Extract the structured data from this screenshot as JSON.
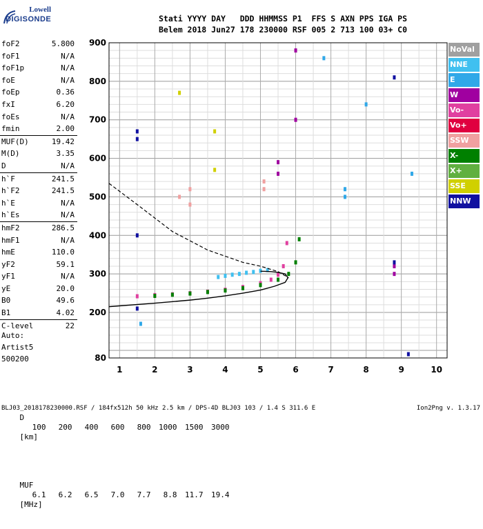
{
  "logo": {
    "line1": "Lowell",
    "line2": "DIGISONDE"
  },
  "header": {
    "labels": "Stati YYYY DAY   DDD HHMMSS P1  FFS S AXN PPS IGA PS",
    "values": "Belem 2018 Jun27 178 230000 RSF 005 2 713 100 03+ C0"
  },
  "params": [
    {
      "label": "foF2",
      "value": "5.800"
    },
    {
      "label": "foF1",
      "value": "N/A"
    },
    {
      "label": "foF1p",
      "value": "N/A"
    },
    {
      "label": "foE",
      "value": "N/A"
    },
    {
      "label": "foEp",
      "value": "0.36"
    },
    {
      "label": "fxI",
      "value": "6.20"
    },
    {
      "label": "foEs",
      "value": "N/A"
    },
    {
      "label": "fmin",
      "value": "2.00"
    },
    {
      "label": "MUF(D)",
      "value": "19.42"
    },
    {
      "label": "M(D)",
      "value": "3.35"
    },
    {
      "label": "D",
      "value": "N/A"
    },
    {
      "label": "h`F",
      "value": "241.5"
    },
    {
      "label": "h`F2",
      "value": "241.5"
    },
    {
      "label": "h`E",
      "value": "N/A"
    },
    {
      "label": "h`Es",
      "value": "N/A"
    },
    {
      "label": "hmF2",
      "value": "286.5"
    },
    {
      "label": "hmF1",
      "value": "N/A"
    },
    {
      "label": "hmE",
      "value": "110.0"
    },
    {
      "label": "yF2",
      "value": "59.1"
    },
    {
      "label": "yF1",
      "value": "N/A"
    },
    {
      "label": "yE",
      "value": "20.0"
    },
    {
      "label": "B0",
      "value": "49.6"
    },
    {
      "label": "B1",
      "value": "4.02"
    },
    {
      "label": "C-level",
      "value": "22"
    }
  ],
  "autoscaling": {
    "line1": "Auto:",
    "line2": "Artist5",
    "line3": "500200"
  },
  "legend": [
    {
      "label": "NoVal",
      "color": "#a0a0a0"
    },
    {
      "label": "NNE",
      "color": "#40c0f0"
    },
    {
      "label": "E",
      "color": "#30a8e8"
    },
    {
      "label": "W",
      "color": "#a000a0"
    },
    {
      "label": "Vo-",
      "color": "#e040a0"
    },
    {
      "label": "Vo+",
      "color": "#e00040"
    },
    {
      "label": "SSW",
      "color": "#f0a0a0"
    },
    {
      "label": "X-",
      "color": "#008000"
    },
    {
      "label": "X+",
      "color": "#60b040"
    },
    {
      "label": "SSE",
      "color": "#d0d000"
    },
    {
      "label": "NNW",
      "color": "#1010a0"
    }
  ],
  "dmuf": {
    "dlabel": "D",
    "distances": [
      "100",
      "200",
      "400",
      "600",
      "800",
      "1000",
      "1500",
      "3000"
    ],
    "dunit": "[km]",
    "muflabel": "MUF",
    "mufs": [
      "6.1",
      "6.2",
      "6.5",
      "7.0",
      "7.7",
      "8.8",
      "11.7",
      "19.4"
    ],
    "mufunit": "[MHz]"
  },
  "footer": "BLJ03_2018178230000.RSF / 184fx512h 50 kHz 2.5 km / DPS-4D BLJ03 103 / 1.4 S 311.6 E",
  "version": "Ion2Png v. 1.3.17",
  "chart_data": {
    "type": "scatter",
    "xlim": [
      0.7,
      10.3
    ],
    "ylim": [
      80,
      900
    ],
    "xticks": [
      "1",
      "2",
      "3",
      "4",
      "5",
      "6",
      "7",
      "8",
      "9",
      "10"
    ],
    "yticks": [
      "80",
      "200",
      "300",
      "400",
      "500",
      "600",
      "700",
      "800",
      "900"
    ],
    "grid": true,
    "legend_position": "right",
    "series": [
      {
        "name": "Vo-",
        "color": "#e040a0",
        "x": [
          1.5,
          2.0,
          2.5,
          3.0,
          3.5,
          4.0,
          4.5,
          5.0,
          5.3,
          5.5,
          5.65,
          5.75
        ],
        "y": [
          242,
          245,
          247,
          250,
          254,
          259,
          266,
          276,
          285,
          298,
          320,
          380
        ]
      },
      {
        "name": "X-",
        "color": "#008000",
        "x": [
          2.0,
          2.5,
          3.0,
          3.5,
          4.0,
          4.5,
          5.0,
          5.5,
          5.8,
          6.0,
          6.1
        ],
        "y": [
          243,
          246,
          249,
          253,
          257,
          263,
          271,
          285,
          300,
          330,
          390
        ]
      },
      {
        "name": "NNE",
        "color": "#40c0f0",
        "x": [
          3.8,
          4.0,
          4.2,
          4.4,
          4.6,
          4.8,
          5.0,
          5.2
        ],
        "y": [
          292,
          295,
          298,
          300,
          303,
          305,
          308,
          310
        ]
      },
      {
        "name": "W",
        "color": "#a000a0",
        "x": [
          5.5,
          5.5,
          6.0,
          6.0,
          8.8,
          8.8
        ],
        "y": [
          560,
          590,
          700,
          880,
          300,
          320
        ]
      },
      {
        "name": "NNW",
        "color": "#1010a0",
        "x": [
          1.5,
          1.5,
          1.5,
          1.5,
          8.8,
          8.8,
          9.2
        ],
        "y": [
          650,
          670,
          400,
          210,
          810,
          330,
          90
        ]
      },
      {
        "name": "SSW",
        "color": "#f0a0a0",
        "x": [
          3.0,
          3.0,
          2.7,
          5.1,
          5.1
        ],
        "y": [
          480,
          520,
          500,
          520,
          540
        ]
      },
      {
        "name": "SSE",
        "color": "#d0d000",
        "x": [
          2.7,
          3.7,
          3.7
        ],
        "y": [
          770,
          670,
          570
        ]
      },
      {
        "name": "E",
        "color": "#30a8e8",
        "x": [
          1.6,
          6.8,
          7.4,
          7.4,
          8.0,
          9.3
        ],
        "y": [
          170,
          860,
          500,
          520,
          740,
          560
        ]
      }
    ],
    "profile_x": [
      0.7,
      2.0,
      3.0,
      3.5,
      4.0,
      4.5,
      5.0,
      5.4,
      5.7,
      5.78
    ],
    "profile_y": [
      215,
      224,
      232,
      237,
      243,
      250,
      258,
      268,
      278,
      290
    ],
    "profile_upper_x": [
      5.78,
      5.7,
      5.5,
      5.3,
      5.0
    ],
    "profile_upper_y": [
      290,
      300,
      304,
      306,
      307
    ],
    "muf_curve_x": [
      0.7,
      1.5,
      2.5,
      3.5,
      4.5,
      5.0,
      5.5,
      5.8
    ],
    "muf_curve_y": [
      535,
      480,
      410,
      362,
      330,
      320,
      306,
      290
    ]
  }
}
